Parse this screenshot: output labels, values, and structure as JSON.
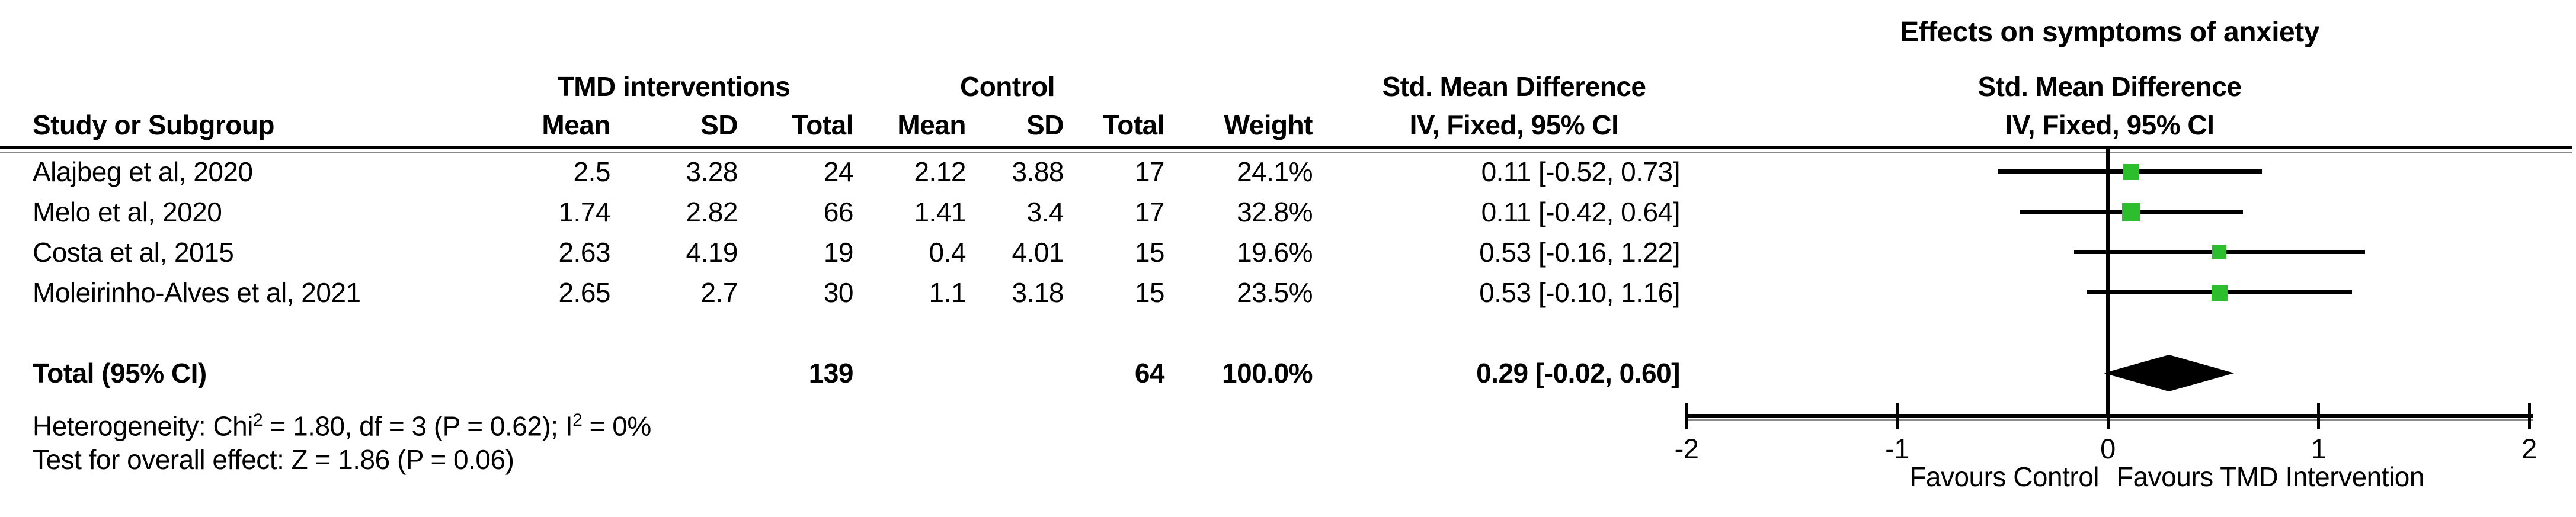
{
  "title": "Effects on symptoms of anxiety",
  "table": {
    "group_headers": {
      "tmd": "TMD interventions",
      "control": "Control"
    },
    "col_headers": {
      "study": "Study or Subgroup",
      "mean": "Mean",
      "sd": "SD",
      "total": "Total",
      "weight": "Weight"
    },
    "smd_col": {
      "line1": "Std. Mean Difference",
      "line2": "IV, Fixed, 95% CI"
    },
    "plot_col": {
      "line1": "Std. Mean Difference",
      "line2": "IV, Fixed, 95% CI"
    },
    "studies": [
      {
        "name": "Alajbeg et al, 2020",
        "tmd_mean": "2.5",
        "tmd_sd": "3.28",
        "tmd_total": "24",
        "ctl_mean": "2.12",
        "ctl_sd": "3.88",
        "ctl_total": "17",
        "weight": "24.1%",
        "ci": "0.11 [-0.52, 0.73]"
      },
      {
        "name": "Melo et al, 2020",
        "tmd_mean": "1.74",
        "tmd_sd": "2.82",
        "tmd_total": "66",
        "ctl_mean": "1.41",
        "ctl_sd": "3.4",
        "ctl_total": "17",
        "weight": "32.8%",
        "ci": "0.11 [-0.42, 0.64]"
      },
      {
        "name": "Costa et al, 2015",
        "tmd_mean": "2.63",
        "tmd_sd": "4.19",
        "tmd_total": "19",
        "ctl_mean": "0.4",
        "ctl_sd": "4.01",
        "ctl_total": "15",
        "weight": "19.6%",
        "ci": "0.53 [-0.16, 1.22]"
      },
      {
        "name": "Moleirinho-Alves et al, 2021",
        "tmd_mean": "2.65",
        "tmd_sd": "2.7",
        "tmd_total": "30",
        "ctl_mean": "1.1",
        "ctl_sd": "3.18",
        "ctl_total": "15",
        "weight": "23.5%",
        "ci": "0.53 [-0.10, 1.16]"
      }
    ],
    "total_row": {
      "label": "Total (95% CI)",
      "tmd_total": "139",
      "ctl_total": "64",
      "weight": "100.0%",
      "ci": "0.29 [-0.02, 0.60]"
    }
  },
  "stats": {
    "het_prefix": "Heterogeneity: Chi",
    "sup": "2",
    "het_mid": " = 1.80, df = 3 (P = 0.62); I",
    "het_suffix": " = 0%",
    "overall_effect": "Test for overall effect: Z = 1.86 (P = 0.06)"
  },
  "axis": {
    "ticks": [
      -2,
      -1,
      0,
      1,
      2
    ],
    "favours_left": "Favours Control",
    "favours_right": "Favours TMD Intervention"
  },
  "colors": {
    "marker_green": "#2dbe2d",
    "line_black": "#000000"
  },
  "chart_data": {
    "type": "forest",
    "title": "Effects on symptoms of anxiety",
    "effect_measure": "Std. Mean Difference, IV, Fixed, 95% CI",
    "xlim": [
      -2,
      2
    ],
    "x_ticks": [
      -2,
      -1,
      0,
      1,
      2
    ],
    "xlabel_left": "Favours Control",
    "xlabel_right": "Favours TMD Intervention",
    "studies": [
      {
        "name": "Alajbeg et al, 2020",
        "estimate": 0.11,
        "ci_lower": -0.52,
        "ci_upper": 0.73,
        "weight_pct": 24.1
      },
      {
        "name": "Melo et al, 2020",
        "estimate": 0.11,
        "ci_lower": -0.42,
        "ci_upper": 0.64,
        "weight_pct": 32.8
      },
      {
        "name": "Costa et al, 2015",
        "estimate": 0.53,
        "ci_lower": -0.16,
        "ci_upper": 1.22,
        "weight_pct": 19.6
      },
      {
        "name": "Moleirinho-Alves et al, 2021",
        "estimate": 0.53,
        "ci_lower": -0.1,
        "ci_upper": 1.16,
        "weight_pct": 23.5
      }
    ],
    "total": {
      "estimate": 0.29,
      "ci_lower": -0.02,
      "ci_upper": 0.6,
      "n_tmd": 139,
      "n_control": 64,
      "weight_pct": 100.0
    },
    "heterogeneity": {
      "chi2": 1.8,
      "df": 3,
      "p": 0.62,
      "i2_pct": 0
    },
    "overall_effect": {
      "z": 1.86,
      "p": 0.06
    }
  }
}
